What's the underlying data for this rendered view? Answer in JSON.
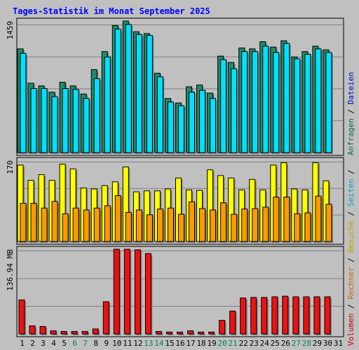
{
  "chart_data": {
    "type": "bar",
    "title": "Tages-Statistik im Monat September 2025",
    "categories": [
      "1",
      "2",
      "3",
      "4",
      "5",
      "6",
      "7",
      "8",
      "9",
      "10",
      "11",
      "12",
      "13",
      "14",
      "15",
      "16",
      "17",
      "18",
      "19",
      "20",
      "21",
      "22",
      "23",
      "24",
      "25",
      "26",
      "27",
      "28",
      "29",
      "30",
      "31"
    ],
    "weekend_days": [
      "6",
      "7",
      "13",
      "14",
      "20",
      "21",
      "27",
      "28"
    ],
    "legend": {
      "right_top": [
        {
          "text": "Anfragen",
          "color": "#006e50"
        },
        {
          "text": " / ",
          "color": "#000000"
        },
        {
          "text": "Dateien",
          "color": "#0000cc"
        }
      ],
      "right_bottom": [
        {
          "text": "Volumen",
          "color": "#cc0000"
        },
        {
          "text": " / ",
          "color": "#000000"
        },
        {
          "text": "Rechner",
          "color": "#cc6600"
        },
        {
          "text": " / ",
          "color": "#000000"
        },
        {
          "text": "Besuche",
          "color": "#c8a000"
        },
        {
          "text": " / ",
          "color": "#000000"
        },
        {
          "text": "Seiten",
          "color": "#00a0c8"
        },
        {
          "text": " / ",
          "color": "#000000"
        }
      ]
    },
    "panels": [
      {
        "ylabel": "1459",
        "max": 1459,
        "series": [
          {
            "name": "Anfragen",
            "color": "#1e8c6a",
            "values": [
              1150,
              770,
              740,
              670,
              780,
              740,
              650,
              920,
              1120,
              1410,
              1459,
              1340,
              1320,
              880,
              600,
              550,
              730,
              750,
              660,
              1070,
              1000,
              1160,
              1150,
              1230,
              1170,
              1240,
              1060,
              1120,
              1180,
              1140,
              0
            ]
          },
          {
            "name": "Dateien",
            "color": "#00e0ff",
            "values": [
              1100,
              710,
              710,
              620,
              710,
              700,
              600,
              820,
              1060,
              1370,
              1420,
              1310,
              1300,
              840,
              560,
              520,
              670,
              690,
              600,
              1030,
              930,
              1120,
              1120,
              1180,
              1110,
              1210,
              1040,
              1090,
              1150,
              1110,
              0
            ]
          }
        ]
      },
      {
        "ylabel": "170",
        "max": 170,
        "series": [
          {
            "name": "Besuche",
            "color": "#ffff00",
            "values": [
              160,
              128,
              140,
              128,
              162,
              152,
              112,
              110,
              117,
              125,
              156,
              104,
              106,
              106,
              110,
              133,
              108,
              107,
              150,
              138,
              133,
              108,
              130,
              108,
              160,
              165,
              110,
              108,
              165,
              127,
              0
            ]
          },
          {
            "name": "Rechner",
            "color": "#ff9900",
            "values": [
              80,
              80,
              70,
              84,
              58,
              70,
              66,
              70,
              75,
              96,
              61,
              66,
              56,
              68,
              70,
              57,
              83,
              69,
              66,
              81,
              57,
              68,
              69,
              72,
              93,
              93,
              58,
              60,
              95,
              78,
              0
            ]
          }
        ]
      },
      {
        "ylabel": "136.94 MB",
        "max": 136.94,
        "series": [
          {
            "name": "Volumen",
            "color": "#ee1111",
            "values": [
              55,
              13,
              12,
              5,
              4,
              4,
              4,
              8,
              52,
              136.94,
              136.94,
              136,
              130,
              4,
              3,
              3,
              5,
              3,
              3,
              22,
              37,
              58,
              59,
              59,
              60,
              61,
              60,
              60,
              60,
              60,
              0
            ]
          }
        ]
      }
    ]
  }
}
